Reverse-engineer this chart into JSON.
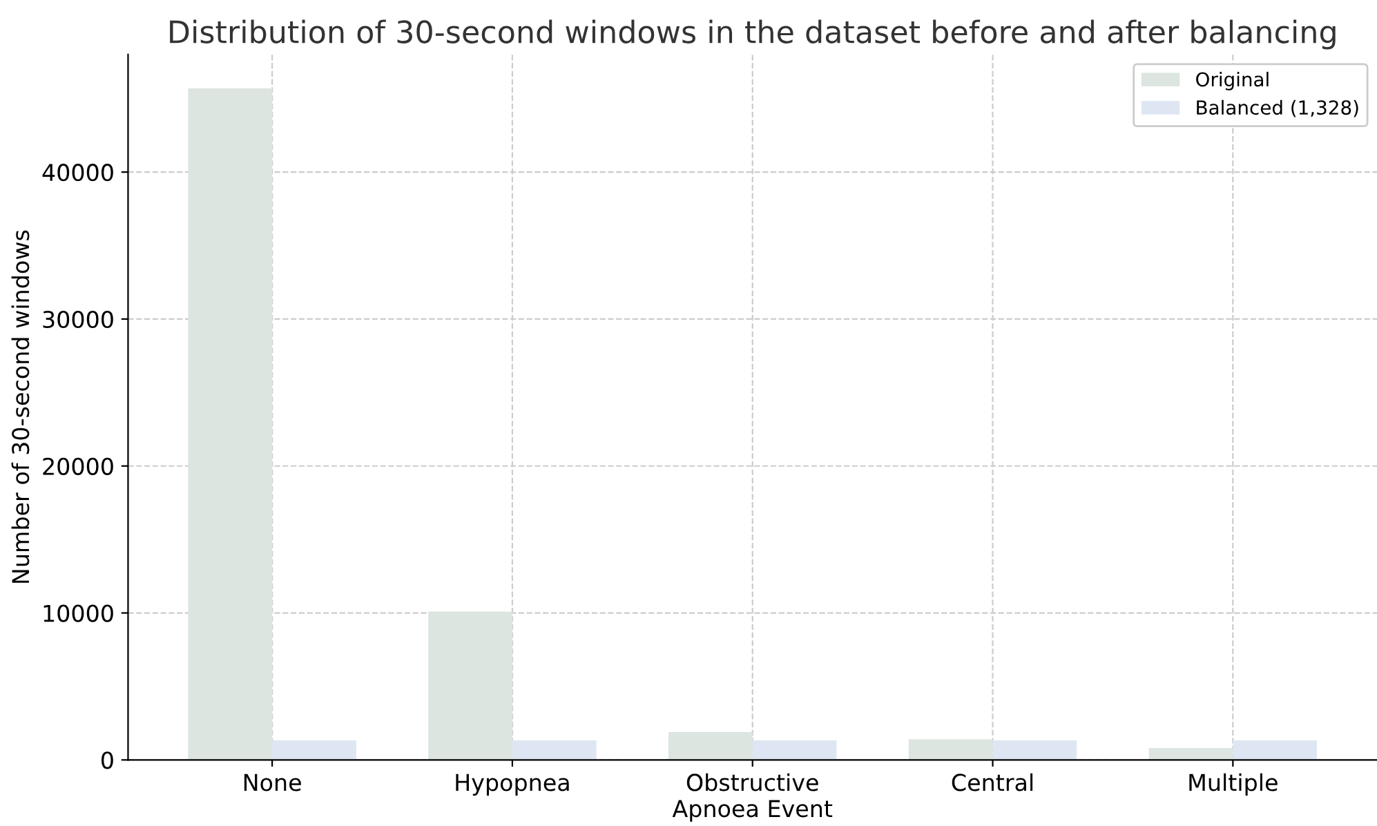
{
  "chart_data": {
    "type": "bar",
    "title": "Distribution of 30-second windows in the dataset before and after balancing",
    "xlabel": "Apnoea Event",
    "ylabel": "Number of 30-second windows",
    "categories": [
      "None",
      "Hypopnea",
      "Obstructive",
      "Central",
      "Multiple"
    ],
    "series": [
      {
        "name": "Original",
        "color": "#dce5df",
        "values": [
          45700,
          10100,
          1900,
          1400,
          800
        ]
      },
      {
        "name": "Balanced (1,328)",
        "color": "#dfe6f3",
        "values": [
          1328,
          1328,
          1328,
          1328,
          1328
        ]
      }
    ],
    "ylim": [
      0,
      48000
    ],
    "yticks": [
      0,
      10000,
      20000,
      30000,
      40000
    ],
    "grid": true,
    "legend": "top right"
  }
}
